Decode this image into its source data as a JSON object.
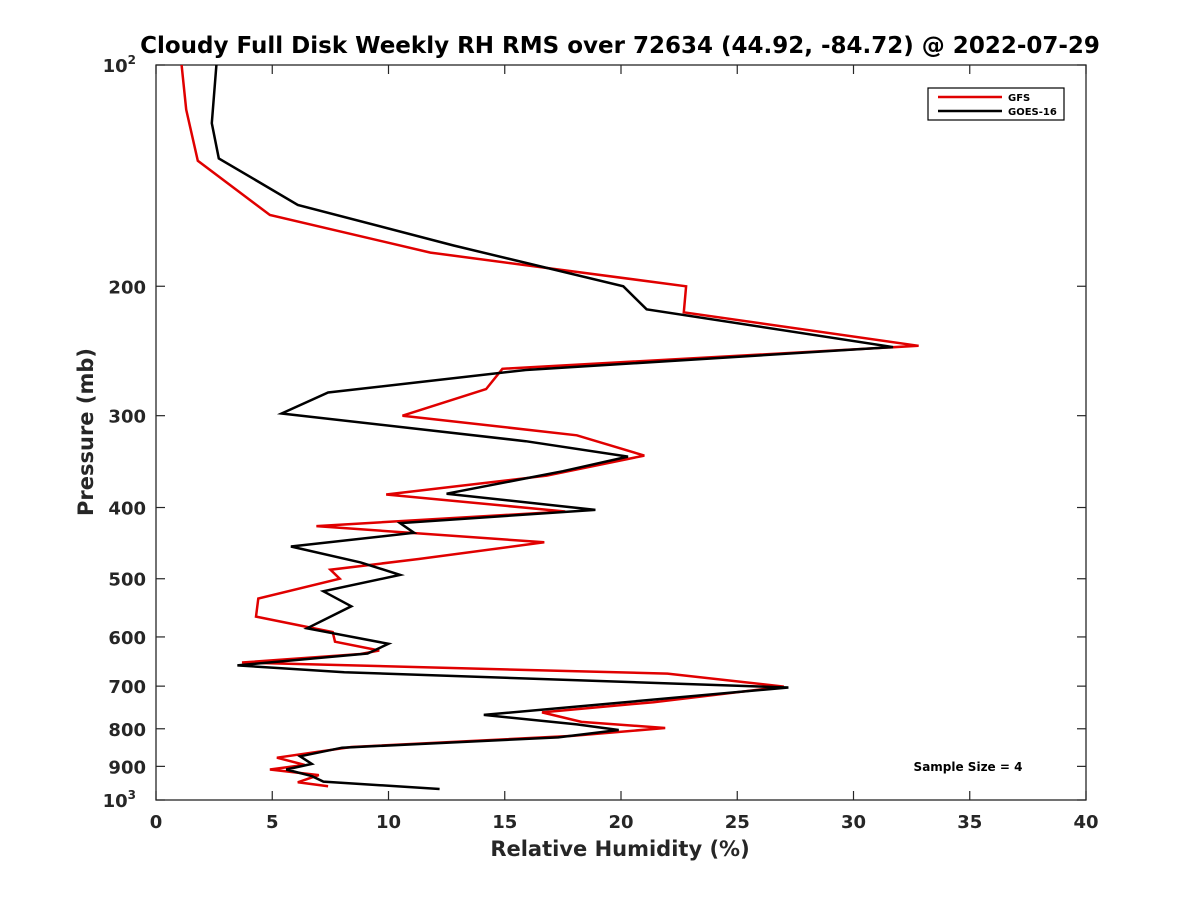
{
  "chart_data": {
    "type": "line",
    "title": "Cloudy Full Disk Weekly RH RMS over 72634 (44.92, -84.72) @ 2022-07-29",
    "xlabel": "Relative Humidity (%)",
    "ylabel": "Pressure (mb)",
    "xlim": [
      0,
      40
    ],
    "ylim": [
      100,
      1000
    ],
    "y_scale": "log",
    "y_reversed": true,
    "x_ticks": [
      0,
      5,
      10,
      15,
      20,
      25,
      30,
      35,
      40
    ],
    "y_ticks": [
      {
        "value": 100,
        "base": "10",
        "exp": "2"
      },
      {
        "value": 200,
        "label": "200"
      },
      {
        "value": 300,
        "label": "300"
      },
      {
        "value": 400,
        "label": "400"
      },
      {
        "value": 500,
        "label": "500"
      },
      {
        "value": 600,
        "label": "600"
      },
      {
        "value": 700,
        "label": "700"
      },
      {
        "value": 800,
        "label": "800"
      },
      {
        "value": 900,
        "label": "900"
      },
      {
        "value": 1000,
        "base": "10",
        "exp": "3"
      }
    ],
    "grid": false,
    "legend_position": "top-right",
    "annotation": "Sample Size = 4",
    "series": [
      {
        "name": "GFS",
        "color": "#e00000",
        "points": [
          [
            1.1,
            100
          ],
          [
            1.3,
            115
          ],
          [
            1.8,
            135
          ],
          [
            4.9,
            160
          ],
          [
            11.8,
            180
          ],
          [
            22.8,
            200
          ],
          [
            22.7,
            217
          ],
          [
            32.8,
            241
          ],
          [
            14.9,
            259
          ],
          [
            14.2,
            276
          ],
          [
            10.6,
            300
          ],
          [
            18.1,
            319
          ],
          [
            21.0,
            340
          ],
          [
            16.8,
            362
          ],
          [
            9.9,
            384
          ],
          [
            17.6,
            405
          ],
          [
            6.9,
            424
          ],
          [
            16.7,
            446
          ],
          [
            11.3,
            470
          ],
          [
            7.5,
            486
          ],
          [
            7.9,
            500
          ],
          [
            4.4,
            532
          ],
          [
            4.3,
            563
          ],
          [
            7.6,
            591
          ],
          [
            7.7,
            609
          ],
          [
            9.6,
            626
          ],
          [
            8.8,
            633
          ],
          [
            3.7,
            650
          ],
          [
            22.0,
            673
          ],
          [
            27.0,
            701
          ],
          [
            21.4,
            736
          ],
          [
            16.6,
            760
          ],
          [
            18.3,
            783
          ],
          [
            21.9,
            798
          ],
          [
            17.9,
            818
          ],
          [
            8.4,
            847
          ],
          [
            5.2,
            876
          ],
          [
            6.4,
            896
          ],
          [
            4.9,
            909
          ],
          [
            7.0,
            925
          ],
          [
            6.1,
            946
          ],
          [
            7.4,
            958
          ]
        ]
      },
      {
        "name": "GOES-16",
        "color": "#000000",
        "points": [
          [
            2.6,
            100
          ],
          [
            2.4,
            120
          ],
          [
            2.7,
            134
          ],
          [
            6.1,
            155
          ],
          [
            12.8,
            176
          ],
          [
            20.1,
            200
          ],
          [
            21.1,
            215
          ],
          [
            31.7,
            242
          ],
          [
            15.9,
            260
          ],
          [
            7.4,
            279
          ],
          [
            5.4,
            298
          ],
          [
            15.9,
            325
          ],
          [
            20.3,
            341
          ],
          [
            17.5,
            357
          ],
          [
            12.5,
            383
          ],
          [
            18.9,
            403
          ],
          [
            10.5,
            420
          ],
          [
            11.1,
            433
          ],
          [
            5.8,
            452
          ],
          [
            8.8,
            475
          ],
          [
            10.5,
            494
          ],
          [
            7.2,
            520
          ],
          [
            8.4,
            545
          ],
          [
            6.5,
            584
          ],
          [
            10.0,
            613
          ],
          [
            9.1,
            632
          ],
          [
            3.5,
            656
          ],
          [
            8.1,
            670
          ],
          [
            27.2,
            703
          ],
          [
            14.1,
            766
          ],
          [
            18.1,
            789
          ],
          [
            19.9,
            803
          ],
          [
            17.3,
            822
          ],
          [
            8.0,
            849
          ],
          [
            6.2,
            872
          ],
          [
            6.7,
            893
          ],
          [
            5.6,
            909
          ],
          [
            6.7,
            928
          ],
          [
            7.2,
            944
          ],
          [
            12.2,
            966
          ]
        ]
      }
    ]
  }
}
